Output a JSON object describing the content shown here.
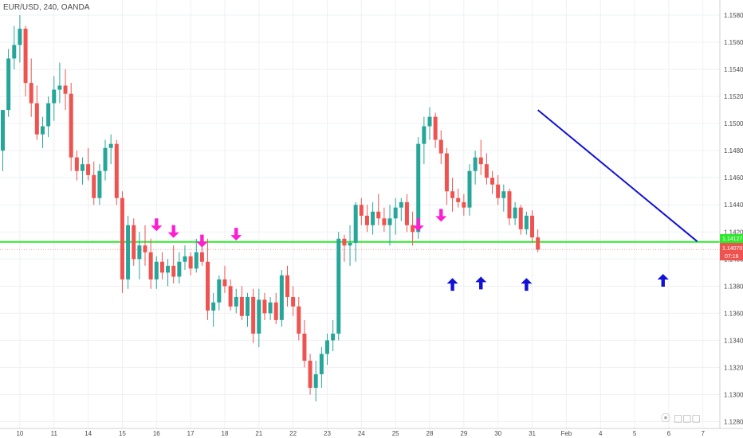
{
  "header": {
    "symbol": "EUR/USD, 240, OANDA"
  },
  "price_tags": {
    "green_level": "1.14127",
    "current": "1.14070",
    "countdown": "07:16"
  },
  "watermark": {
    "text": "⦿  □□□"
  },
  "colors": {
    "bull": "#26a69a",
    "bear": "#ef5350",
    "magenta": "#ff1dd1",
    "blue": "#1010d8",
    "green_line": "#2ee82e",
    "trend": "#1010d8"
  },
  "chart_data": {
    "type": "candlestick",
    "ylim": [
      1.1275,
      1.159
    ],
    "yticks": [
      "1.15800",
      "1.15600",
      "1.15400",
      "1.15200",
      "1.15000",
      "1.14800",
      "1.14600",
      "1.14400",
      "1.14200",
      "1.14000",
      "1.13800",
      "1.13600",
      "1.13400",
      "1.13200",
      "1.13000",
      "1.12800"
    ],
    "xticks": [
      {
        "label": "10",
        "i": 3
      },
      {
        "label": "11",
        "i": 9
      },
      {
        "label": "14",
        "i": 15
      },
      {
        "label": "15",
        "i": 21
      },
      {
        "label": "16",
        "i": 27
      },
      {
        "label": "17",
        "i": 33
      },
      {
        "label": "18",
        "i": 39
      },
      {
        "label": "21",
        "i": 45
      },
      {
        "label": "22",
        "i": 51
      },
      {
        "label": "23",
        "i": 57
      },
      {
        "label": "24",
        "i": 63
      },
      {
        "label": "25",
        "i": 69
      },
      {
        "label": "28",
        "i": 75
      },
      {
        "label": "29",
        "i": 81
      },
      {
        "label": "30",
        "i": 87
      },
      {
        "label": "31",
        "i": 93
      },
      {
        "label": "Feb",
        "i": 99
      },
      {
        "label": "4",
        "i": 105
      },
      {
        "label": "5",
        "i": 111
      },
      {
        "label": "6",
        "i": 117
      },
      {
        "label": "7",
        "i": 123
      }
    ],
    "candles": [
      [
        1.148,
        1.151,
        1.1465,
        1.151
      ],
      [
        1.151,
        1.1555,
        1.1505,
        1.1548
      ],
      [
        1.1548,
        1.1572,
        1.154,
        1.1558
      ],
      [
        1.1558,
        1.158,
        1.1545,
        1.157
      ],
      [
        1.157,
        1.1572,
        1.152,
        1.153
      ],
      [
        1.153,
        1.1548,
        1.1505,
        1.1515
      ],
      [
        1.1515,
        1.1528,
        1.1488,
        1.1492
      ],
      [
        1.1492,
        1.1505,
        1.1482,
        1.1498
      ],
      [
        1.1498,
        1.152,
        1.149,
        1.1515
      ],
      [
        1.1515,
        1.1535,
        1.1502,
        1.1525
      ],
      [
        1.1525,
        1.1545,
        1.1515,
        1.1528
      ],
      [
        1.1528,
        1.154,
        1.151,
        1.1522
      ],
      [
        1.1522,
        1.153,
        1.1465,
        1.1475
      ],
      [
        1.1475,
        1.148,
        1.1458,
        1.1465
      ],
      [
        1.1465,
        1.1475,
        1.1455,
        1.147
      ],
      [
        1.147,
        1.1482,
        1.1458,
        1.1462
      ],
      [
        1.1462,
        1.1472,
        1.144,
        1.1445
      ],
      [
        1.1445,
        1.147,
        1.144,
        1.1465
      ],
      [
        1.1465,
        1.1488,
        1.1458,
        1.1482
      ],
      [
        1.1482,
        1.1492,
        1.147,
        1.1485
      ],
      [
        1.1485,
        1.1488,
        1.144,
        1.1445
      ],
      [
        1.1445,
        1.145,
        1.1375,
        1.1385
      ],
      [
        1.1385,
        1.1432,
        1.1378,
        1.1425
      ],
      [
        1.1425,
        1.143,
        1.1395,
        1.14
      ],
      [
        1.14,
        1.142,
        1.1385,
        1.141
      ],
      [
        1.141,
        1.1425,
        1.1395,
        1.1405
      ],
      [
        1.1405,
        1.1415,
        1.1378,
        1.1385
      ],
      [
        1.1385,
        1.1402,
        1.1378,
        1.1398
      ],
      [
        1.1398,
        1.1405,
        1.1385,
        1.139
      ],
      [
        1.139,
        1.14,
        1.138,
        1.1395
      ],
      [
        1.1395,
        1.141,
        1.1382,
        1.1387
      ],
      [
        1.1387,
        1.1405,
        1.1382,
        1.1398
      ],
      [
        1.1398,
        1.141,
        1.1392,
        1.1402
      ],
      [
        1.1402,
        1.1405,
        1.1388,
        1.1393
      ],
      [
        1.1393,
        1.1415,
        1.139,
        1.1405
      ],
      [
        1.1405,
        1.1412,
        1.1395,
        1.1398
      ],
      [
        1.1398,
        1.1415,
        1.1355,
        1.1362
      ],
      [
        1.1362,
        1.1375,
        1.135,
        1.1368
      ],
      [
        1.1368,
        1.1388,
        1.1362,
        1.1385
      ],
      [
        1.1385,
        1.1395,
        1.1375,
        1.138
      ],
      [
        1.138,
        1.1385,
        1.1362,
        1.1365
      ],
      [
        1.1365,
        1.1378,
        1.136,
        1.1372
      ],
      [
        1.1372,
        1.138,
        1.1355,
        1.1358
      ],
      [
        1.1358,
        1.1375,
        1.135,
        1.1372
      ],
      [
        1.1372,
        1.1378,
        1.1338,
        1.1345
      ],
      [
        1.1345,
        1.1378,
        1.1335,
        1.137
      ],
      [
        1.137,
        1.1375,
        1.1355,
        1.136
      ],
      [
        1.136,
        1.1372,
        1.1355,
        1.1368
      ],
      [
        1.1368,
        1.1375,
        1.1352,
        1.1355
      ],
      [
        1.1355,
        1.1392,
        1.135,
        1.1388
      ],
      [
        1.1388,
        1.1395,
        1.1365,
        1.1372
      ],
      [
        1.1372,
        1.138,
        1.1358,
        1.1365
      ],
      [
        1.1365,
        1.1372,
        1.134,
        1.1345
      ],
      [
        1.1345,
        1.1355,
        1.132,
        1.1325
      ],
      [
        1.1325,
        1.133,
        1.13,
        1.1305
      ],
      [
        1.1305,
        1.1325,
        1.1295,
        1.1315
      ],
      [
        1.1315,
        1.1335,
        1.1305,
        1.133
      ],
      [
        1.133,
        1.1345,
        1.1322,
        1.134
      ],
      [
        1.134,
        1.1355,
        1.1332,
        1.1345
      ],
      [
        1.1345,
        1.142,
        1.134,
        1.1415
      ],
      [
        1.1415,
        1.1418,
        1.1398,
        1.141
      ],
      [
        1.141,
        1.1425,
        1.1395,
        1.1412
      ],
      [
        1.1412,
        1.1442,
        1.1398,
        1.144
      ],
      [
        1.144,
        1.1445,
        1.1425,
        1.1432
      ],
      [
        1.1432,
        1.144,
        1.142,
        1.1425
      ],
      [
        1.1425,
        1.1442,
        1.1418,
        1.1435
      ],
      [
        1.1435,
        1.1448,
        1.1425,
        1.143
      ],
      [
        1.143,
        1.1438,
        1.142,
        1.1425
      ],
      [
        1.1425,
        1.144,
        1.141,
        1.143
      ],
      [
        1.143,
        1.1445,
        1.1418,
        1.1438
      ],
      [
        1.1438,
        1.1445,
        1.1428,
        1.1442
      ],
      [
        1.1442,
        1.1448,
        1.142,
        1.1425
      ],
      [
        1.1425,
        1.1435,
        1.141,
        1.142
      ],
      [
        1.142,
        1.149,
        1.1415,
        1.1485
      ],
      [
        1.1485,
        1.1505,
        1.147,
        1.1498
      ],
      [
        1.1498,
        1.1512,
        1.1488,
        1.1505
      ],
      [
        1.1505,
        1.1508,
        1.1482,
        1.1488
      ],
      [
        1.1488,
        1.1495,
        1.147,
        1.1478
      ],
      [
        1.1478,
        1.1482,
        1.144,
        1.145
      ],
      [
        1.145,
        1.146,
        1.1435,
        1.1445
      ],
      [
        1.1445,
        1.1452,
        1.1438,
        1.1442
      ],
      [
        1.1442,
        1.1448,
        1.1432,
        1.1438
      ],
      [
        1.1438,
        1.147,
        1.1432,
        1.1465
      ],
      [
        1.1465,
        1.148,
        1.1455,
        1.1475
      ],
      [
        1.1475,
        1.1488,
        1.1462,
        1.147
      ],
      [
        1.147,
        1.1478,
        1.1455,
        1.146
      ],
      [
        1.146,
        1.1465,
        1.1448,
        1.1455
      ],
      [
        1.1455,
        1.1462,
        1.144,
        1.1445
      ],
      [
        1.1445,
        1.1455,
        1.1435,
        1.145
      ],
      [
        1.145,
        1.1452,
        1.1425,
        1.143
      ],
      [
        1.143,
        1.1442,
        1.1425,
        1.1438
      ],
      [
        1.1438,
        1.144,
        1.1418,
        1.1422
      ],
      [
        1.1422,
        1.1435,
        1.1418,
        1.1432
      ],
      [
        1.1432,
        1.1436,
        1.1412,
        1.1416
      ],
      [
        1.1416,
        1.1422,
        1.1405,
        1.1407
      ]
    ],
    "annotations": {
      "horizontal_line": 1.14127,
      "trendline": [
        [
          94,
          1.151
        ],
        [
          122,
          1.1413
        ]
      ],
      "magenta_arrows": [
        [
          27,
          1.143
        ],
        [
          30,
          1.1425
        ],
        [
          35,
          1.1418
        ],
        [
          41,
          1.1423
        ],
        [
          73,
          1.143
        ],
        [
          77,
          1.1437
        ]
      ],
      "blue_arrows": [
        [
          79,
          1.1386
        ],
        [
          84,
          1.1387
        ],
        [
          92,
          1.1386
        ],
        [
          116,
          1.1389
        ]
      ]
    }
  }
}
